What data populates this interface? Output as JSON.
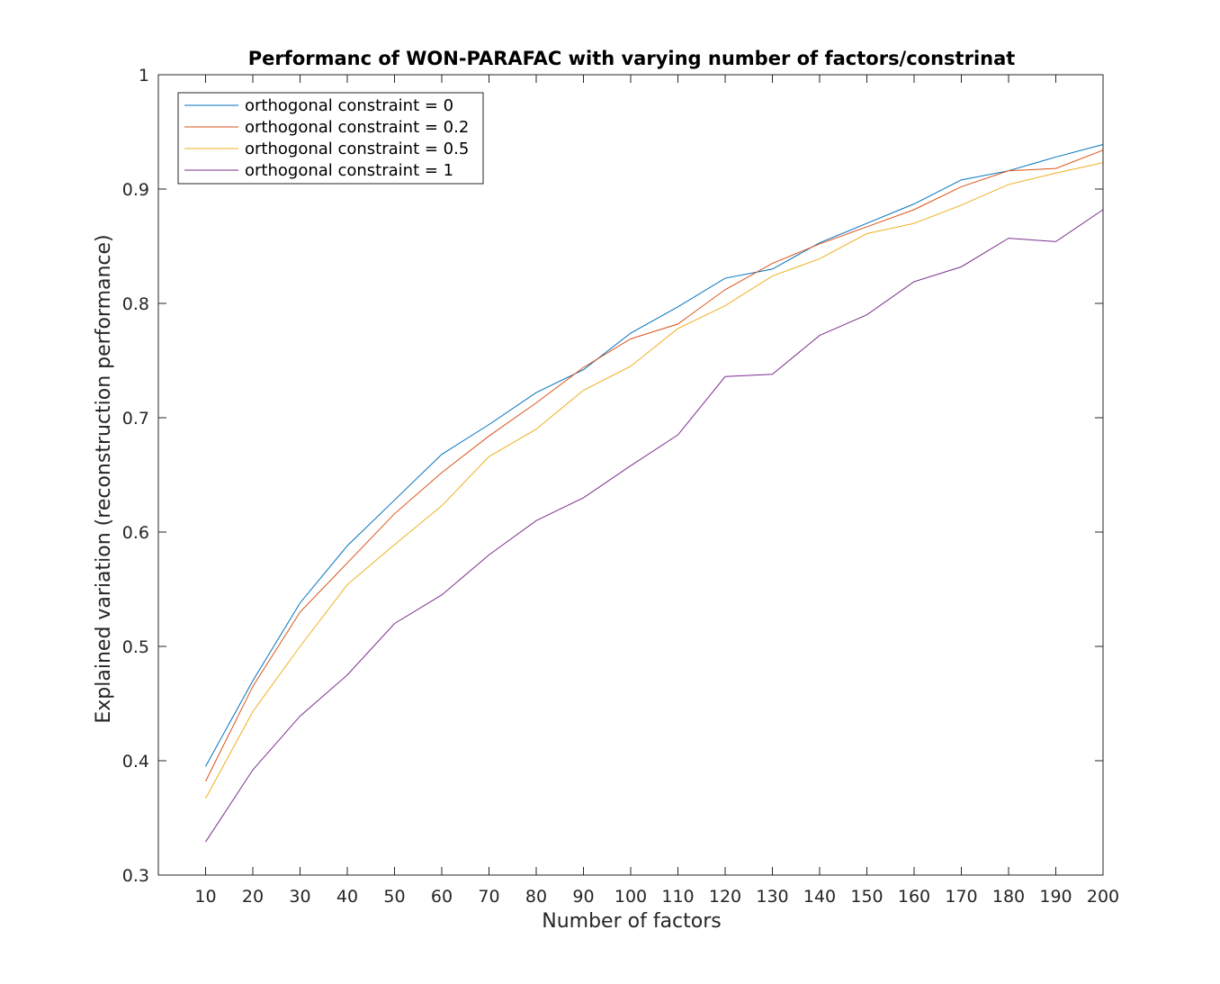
{
  "chart_data": {
    "type": "line",
    "title": "Performanc of WON-PARAFAC with varying number of factors/constrinat",
    "xlabel": "Number of factors",
    "ylabel": "Explained variation (reconstruction performance)",
    "xlim": [
      0,
      200
    ],
    "ylim": [
      0.3,
      1
    ],
    "x": [
      10,
      20,
      30,
      40,
      50,
      60,
      70,
      80,
      90,
      100,
      110,
      120,
      130,
      140,
      150,
      160,
      170,
      180,
      190,
      200
    ],
    "xticks": [
      10,
      20,
      30,
      40,
      50,
      60,
      70,
      80,
      90,
      100,
      110,
      120,
      130,
      140,
      150,
      160,
      170,
      180,
      190,
      200
    ],
    "yticks": [
      0.3,
      0.4,
      0.5,
      0.6,
      0.7,
      0.8,
      0.9,
      1
    ],
    "ytick_labels": [
      "0.3",
      "0.4",
      "0.5",
      "0.6",
      "0.7",
      "0.8",
      "0.9",
      "1"
    ],
    "grid": false,
    "legend_position": "top-left",
    "series": [
      {
        "name": "orthogonal constraint = 0",
        "color": "#0072BD",
        "values": [
          0.395,
          0.47,
          0.538,
          0.588,
          0.628,
          0.668,
          0.694,
          0.722,
          0.742,
          0.774,
          0.797,
          0.822,
          0.83,
          0.853,
          0.87,
          0.887,
          0.908,
          0.916,
          0.928,
          0.939
        ]
      },
      {
        "name": "orthogonal constraint = 0.2",
        "color": "#D95319",
        "values": [
          0.382,
          0.465,
          0.53,
          0.573,
          0.616,
          0.652,
          0.684,
          0.713,
          0.744,
          0.769,
          0.782,
          0.812,
          0.835,
          0.852,
          0.867,
          0.882,
          0.902,
          0.916,
          0.918,
          0.934
        ]
      },
      {
        "name": "orthogonal constraint = 0.5",
        "color": "#EDB120",
        "values": [
          0.367,
          0.443,
          0.5,
          0.554,
          0.589,
          0.623,
          0.666,
          0.69,
          0.724,
          0.745,
          0.778,
          0.798,
          0.824,
          0.839,
          0.861,
          0.87,
          0.886,
          0.904,
          0.914,
          0.923
        ]
      },
      {
        "name": "orthogonal constraint = 1",
        "color": "#7E2F8E",
        "values": [
          0.329,
          0.392,
          0.439,
          0.475,
          0.52,
          0.545,
          0.58,
          0.61,
          0.63,
          0.658,
          0.685,
          0.736,
          0.738,
          0.772,
          0.79,
          0.819,
          0.832,
          0.857,
          0.854,
          0.882
        ]
      }
    ]
  }
}
